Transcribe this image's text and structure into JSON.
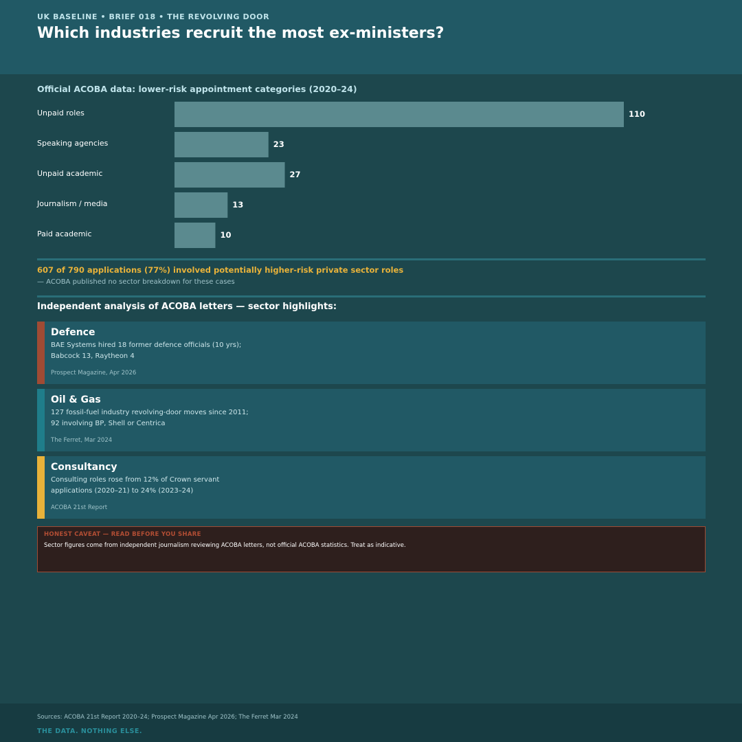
{
  "header": {
    "kicker": "UK BASELINE  •  BRIEF 018  •  THE REVOLVING DOOR",
    "title": "Which industries recruit the most ex-ministers?"
  },
  "chart_data": {
    "type": "bar",
    "orientation": "horizontal",
    "title": "Official ACOBA data: lower-risk appointment categories (2020–24)",
    "categories": [
      "Unpaid roles",
      "Speaking agencies",
      "Unpaid academic",
      "Journalism / media",
      "Paid academic"
    ],
    "values": [
      110,
      23,
      27,
      13,
      10
    ],
    "xlim": [
      0,
      110
    ],
    "grid": false,
    "legend": "none",
    "bar_color": "#5b8a8f"
  },
  "summary": {
    "highlight": "607 of 790 applications (77%) involved potentially higher-risk private sector roles",
    "note": "— ACOBA published no sector breakdown for these cases"
  },
  "sectors": {
    "title": "Independent analysis of ACOBA letters — sector highlights:",
    "cards": [
      {
        "name": "Defence",
        "line1": "BAE Systems hired 18 former defence officials (10 yrs);",
        "line2": "Babcock 13, Raytheon 4",
        "source": "Prospect Magazine, Apr 2026",
        "color": "#a04b34"
      },
      {
        "name": "Oil & Gas",
        "line1": "127 fossil-fuel industry revolving-door moves since 2011;",
        "line2": "92 involving BP, Shell or Centrica",
        "source": "The Ferret, Mar 2024",
        "color": "#1f7d8a"
      },
      {
        "name": "Consultancy",
        "line1": "Consulting roles rose from 12% of Crown servant",
        "line2": "applications (2020–21) to 24% (2023–24)",
        "source": "ACOBA 21st Report",
        "color": "#e8b23a"
      }
    ]
  },
  "caveat": {
    "title": "HONEST CAVEAT — READ BEFORE YOU SHARE",
    "body": "Sector figures come from independent journalism reviewing ACOBA letters, not official ACOBA statistics. Treat as indicative."
  },
  "footer": {
    "sources": "Sources: ACOBA 21st Report 2020–24; Prospect Magazine Apr 2026; The Ferret Mar 2024",
    "tagline": "THE DATA. NOTHING ELSE."
  }
}
